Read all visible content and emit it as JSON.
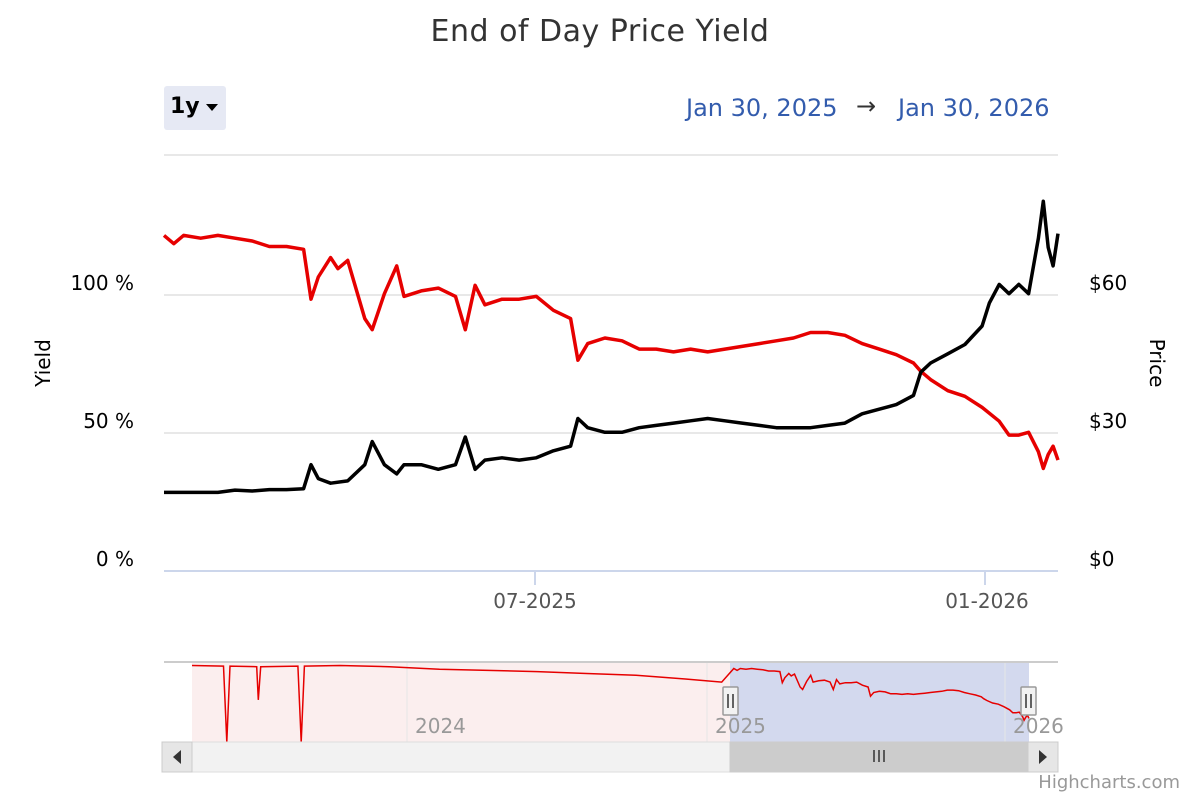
{
  "title": "End of Day Price Yield",
  "range_selector": {
    "label": "1y"
  },
  "date_range": {
    "from": "Jan 30, 2025",
    "arrow": "→",
    "to": "Jan 30, 2026"
  },
  "credits": "Highcharts.com",
  "colors": {
    "yield": "#e60000",
    "price": "#000000",
    "grid": "#e0e0e0",
    "navigator_mask": "#d3d9ee",
    "navigator_bg": "#fbeeee"
  },
  "chart_data": {
    "type": "line",
    "title": "End of Day Price Yield",
    "x_range": [
      "2025-01-30",
      "2026-01-30"
    ],
    "x_tick_labels": [
      "07-2025",
      "01-2026"
    ],
    "x_tick_dates": [
      "2025-07-01",
      "2026-01-01"
    ],
    "left_axis": {
      "label": "Yield",
      "tick_labels": [
        "0 %",
        "50 %",
        "100 %"
      ],
      "ticks": [
        0,
        50,
        100
      ],
      "range": [
        0,
        150
      ]
    },
    "right_axis": {
      "label": "Price",
      "tick_labels": [
        "$0",
        "$30",
        "$60"
      ],
      "ticks": [
        0,
        30,
        60
      ],
      "range": [
        0,
        90
      ]
    },
    "series": [
      {
        "name": "Yield",
        "axis": "left",
        "color": "#e60000",
        "points": [
          [
            "2025-01-30",
            121
          ],
          [
            "2025-02-03",
            118
          ],
          [
            "2025-02-07",
            121
          ],
          [
            "2025-02-14",
            120
          ],
          [
            "2025-02-21",
            121
          ],
          [
            "2025-02-28",
            120
          ],
          [
            "2025-03-07",
            119
          ],
          [
            "2025-03-14",
            117
          ],
          [
            "2025-03-21",
            117
          ],
          [
            "2025-03-28",
            116
          ],
          [
            "2025-03-31",
            98
          ],
          [
            "2025-04-03",
            106
          ],
          [
            "2025-04-08",
            113
          ],
          [
            "2025-04-11",
            109
          ],
          [
            "2025-04-15",
            112
          ],
          [
            "2025-04-22",
            91
          ],
          [
            "2025-04-25",
            87
          ],
          [
            "2025-04-30",
            100
          ],
          [
            "2025-05-05",
            110
          ],
          [
            "2025-05-08",
            99
          ],
          [
            "2025-05-15",
            101
          ],
          [
            "2025-05-22",
            102
          ],
          [
            "2025-05-29",
            99
          ],
          [
            "2025-06-02",
            87
          ],
          [
            "2025-06-06",
            103
          ],
          [
            "2025-06-10",
            96
          ],
          [
            "2025-06-17",
            98
          ],
          [
            "2025-06-24",
            98
          ],
          [
            "2025-07-01",
            99
          ],
          [
            "2025-07-08",
            94
          ],
          [
            "2025-07-15",
            91
          ],
          [
            "2025-07-18",
            76
          ],
          [
            "2025-07-22",
            82
          ],
          [
            "2025-07-29",
            84
          ],
          [
            "2025-08-05",
            83
          ],
          [
            "2025-08-12",
            80
          ],
          [
            "2025-08-19",
            80
          ],
          [
            "2025-08-26",
            79
          ],
          [
            "2025-09-02",
            80
          ],
          [
            "2025-09-09",
            79
          ],
          [
            "2025-09-16",
            80
          ],
          [
            "2025-09-23",
            81
          ],
          [
            "2025-09-30",
            82
          ],
          [
            "2025-10-07",
            83
          ],
          [
            "2025-10-14",
            84
          ],
          [
            "2025-10-21",
            86
          ],
          [
            "2025-10-28",
            86
          ],
          [
            "2025-11-04",
            85
          ],
          [
            "2025-11-11",
            82
          ],
          [
            "2025-11-18",
            80
          ],
          [
            "2025-11-25",
            78
          ],
          [
            "2025-12-02",
            75
          ],
          [
            "2025-12-05",
            72
          ],
          [
            "2025-12-09",
            69
          ],
          [
            "2025-12-16",
            65
          ],
          [
            "2025-12-23",
            63
          ],
          [
            "2025-12-30",
            59
          ],
          [
            "2026-01-06",
            54
          ],
          [
            "2026-01-10",
            49
          ],
          [
            "2026-01-14",
            49
          ],
          [
            "2026-01-18",
            50
          ],
          [
            "2026-01-22",
            43
          ],
          [
            "2026-01-24",
            37
          ],
          [
            "2026-01-26",
            42
          ],
          [
            "2026-01-28",
            45
          ],
          [
            "2026-01-30",
            40
          ]
        ]
      },
      {
        "name": "Price",
        "axis": "right",
        "color": "#000000",
        "points": [
          [
            "2025-01-30",
            17
          ],
          [
            "2025-02-07",
            17
          ],
          [
            "2025-02-14",
            17
          ],
          [
            "2025-02-21",
            17
          ],
          [
            "2025-02-28",
            17.5
          ],
          [
            "2025-03-07",
            17.3
          ],
          [
            "2025-03-14",
            17.6
          ],
          [
            "2025-03-21",
            17.6
          ],
          [
            "2025-03-28",
            17.8
          ],
          [
            "2025-03-31",
            23
          ],
          [
            "2025-04-03",
            20
          ],
          [
            "2025-04-08",
            19
          ],
          [
            "2025-04-15",
            19.5
          ],
          [
            "2025-04-22",
            23
          ],
          [
            "2025-04-25",
            28
          ],
          [
            "2025-04-30",
            23
          ],
          [
            "2025-05-05",
            21
          ],
          [
            "2025-05-08",
            23
          ],
          [
            "2025-05-15",
            23
          ],
          [
            "2025-05-22",
            22
          ],
          [
            "2025-05-29",
            23
          ],
          [
            "2025-06-02",
            29
          ],
          [
            "2025-06-06",
            22
          ],
          [
            "2025-06-10",
            24
          ],
          [
            "2025-06-17",
            24.5
          ],
          [
            "2025-06-24",
            24
          ],
          [
            "2025-07-01",
            24.5
          ],
          [
            "2025-07-08",
            26
          ],
          [
            "2025-07-15",
            27
          ],
          [
            "2025-07-18",
            33
          ],
          [
            "2025-07-22",
            31
          ],
          [
            "2025-07-29",
            30
          ],
          [
            "2025-08-05",
            30
          ],
          [
            "2025-08-12",
            31
          ],
          [
            "2025-08-19",
            31.5
          ],
          [
            "2025-08-26",
            32
          ],
          [
            "2025-09-02",
            32.5
          ],
          [
            "2025-09-09",
            33
          ],
          [
            "2025-09-16",
            32.5
          ],
          [
            "2025-09-23",
            32
          ],
          [
            "2025-09-30",
            31.5
          ],
          [
            "2025-10-07",
            31
          ],
          [
            "2025-10-14",
            31
          ],
          [
            "2025-10-21",
            31
          ],
          [
            "2025-10-28",
            31.5
          ],
          [
            "2025-11-04",
            32
          ],
          [
            "2025-11-11",
            34
          ],
          [
            "2025-11-18",
            35
          ],
          [
            "2025-11-25",
            36
          ],
          [
            "2025-12-02",
            38
          ],
          [
            "2025-12-05",
            43
          ],
          [
            "2025-12-09",
            45
          ],
          [
            "2025-12-16",
            47
          ],
          [
            "2025-12-23",
            49
          ],
          [
            "2025-12-30",
            53
          ],
          [
            "2026-01-02",
            58
          ],
          [
            "2026-01-06",
            62
          ],
          [
            "2026-01-10",
            60
          ],
          [
            "2026-01-14",
            62
          ],
          [
            "2026-01-18",
            60
          ],
          [
            "2026-01-22",
            72
          ],
          [
            "2026-01-24",
            80
          ],
          [
            "2026-01-26",
            70
          ],
          [
            "2026-01-28",
            66
          ],
          [
            "2026-01-30",
            73
          ]
        ]
      }
    ],
    "navigator": {
      "labels": [
        "2024",
        "2025",
        "2026"
      ]
    }
  }
}
